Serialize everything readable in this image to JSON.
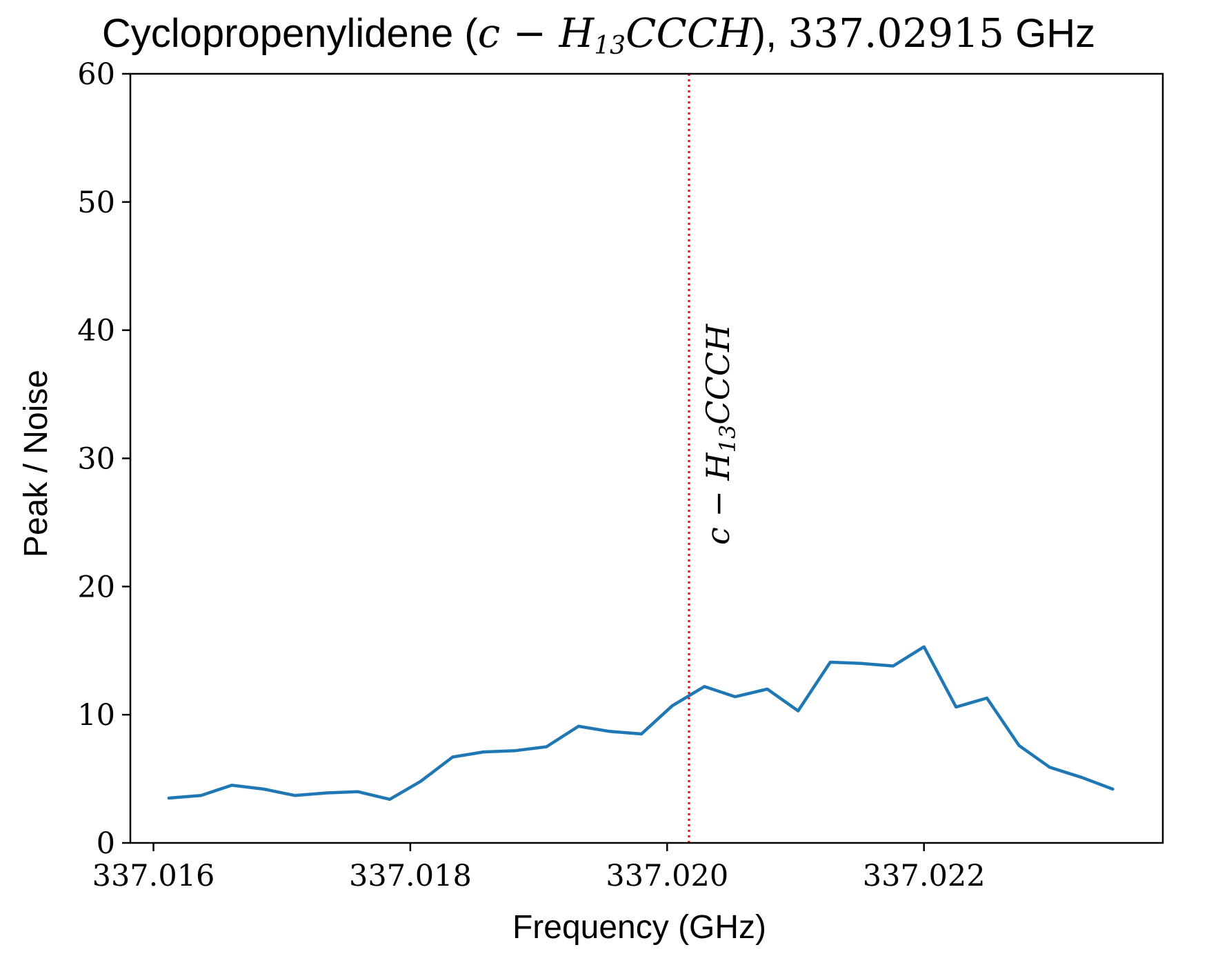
{
  "chart_data": {
    "type": "line",
    "title": {
      "prefix": "Cyclopropenylidene (",
      "math": "c − H",
      "subscript": "13",
      "math2": "CCCH",
      "close": "), ",
      "freq": "337.02915",
      "unit": " GHz"
    },
    "xlabel": "Frequency (GHz)",
    "ylabel": "Peak / Noise",
    "xlim": [
      337.01582,
      337.02386
    ],
    "ylim": [
      0,
      60
    ],
    "xticks": [
      {
        "value": 337.016,
        "label": "337.016"
      },
      {
        "value": 337.018,
        "label": "337.018"
      },
      {
        "value": 337.02,
        "label": "337.020"
      },
      {
        "value": 337.022,
        "label": "337.022"
      }
    ],
    "yticks": [
      {
        "value": 0,
        "label": "0"
      },
      {
        "value": 10,
        "label": "10"
      },
      {
        "value": 20,
        "label": "20"
      },
      {
        "value": 30,
        "label": "30"
      },
      {
        "value": 40,
        "label": "40"
      },
      {
        "value": 50,
        "label": "50"
      },
      {
        "value": 60,
        "label": "60"
      }
    ],
    "series": [
      {
        "color": "#1f77b4",
        "x": [
          337.01612,
          337.01637,
          337.01661,
          337.01686,
          337.0171,
          337.01735,
          337.01759,
          337.01784,
          337.01808,
          337.01833,
          337.01857,
          337.01882,
          337.01906,
          337.01931,
          337.01955,
          337.0198,
          337.02004,
          337.02029,
          337.02053,
          337.02078,
          337.02102,
          337.02127,
          337.02151,
          337.02176,
          337.022,
          337.02225,
          337.02249,
          337.02274,
          337.02298,
          337.02323,
          337.02347
        ],
        "y": [
          3.5,
          3.7,
          4.5,
          4.2,
          3.7,
          3.9,
          4.0,
          3.4,
          4.8,
          6.7,
          7.1,
          7.2,
          7.5,
          9.1,
          8.7,
          8.5,
          10.7,
          12.2,
          11.4,
          12.0,
          10.3,
          14.1,
          14.0,
          13.8,
          15.3,
          10.6,
          11.3,
          7.6,
          5.9,
          5.1,
          4.2
        ]
      }
    ],
    "vline": {
      "x": 337.02017,
      "color": "#ff0000",
      "style": "dotted",
      "label_math": "c − H",
      "label_sub": "13",
      "label_math2": "CCCH"
    }
  }
}
